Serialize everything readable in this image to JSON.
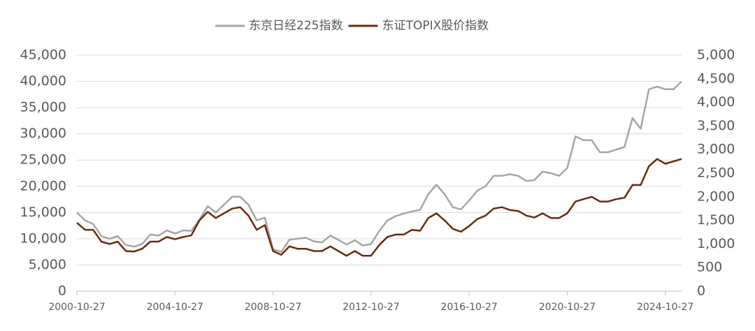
{
  "chart_data": {
    "type": "line",
    "x": [
      "2000-10-27",
      "2001-02-27",
      "2001-06-27",
      "2001-10-27",
      "2002-02-27",
      "2002-06-27",
      "2002-10-27",
      "2003-02-27",
      "2003-06-27",
      "2003-10-27",
      "2004-02-27",
      "2004-06-27",
      "2004-10-27",
      "2005-02-27",
      "2005-06-27",
      "2005-10-27",
      "2006-02-27",
      "2006-06-27",
      "2006-10-27",
      "2007-02-27",
      "2007-06-27",
      "2007-10-27",
      "2008-02-27",
      "2008-06-27",
      "2008-10-27",
      "2009-02-27",
      "2009-06-27",
      "2009-10-27",
      "2010-02-27",
      "2010-06-27",
      "2010-10-27",
      "2011-02-27",
      "2011-06-27",
      "2011-10-27",
      "2012-02-27",
      "2012-06-27",
      "2012-10-27",
      "2013-02-27",
      "2013-06-27",
      "2013-10-27",
      "2014-02-27",
      "2014-06-27",
      "2014-10-27",
      "2015-02-27",
      "2015-06-27",
      "2015-10-27",
      "2016-02-27",
      "2016-06-27",
      "2016-10-27",
      "2017-02-27",
      "2017-06-27",
      "2017-10-27",
      "2018-02-27",
      "2018-06-27",
      "2018-10-27",
      "2019-02-27",
      "2019-06-27",
      "2019-10-27",
      "2020-02-27",
      "2020-06-27",
      "2020-10-27",
      "2021-02-27",
      "2021-06-27",
      "2021-10-27",
      "2022-02-27",
      "2022-06-27",
      "2022-10-27",
      "2023-02-27",
      "2023-06-27",
      "2023-10-27",
      "2024-02-27",
      "2024-06-27",
      "2024-10-27",
      "2025-02-27",
      "2025-06-27"
    ],
    "series": [
      {
        "name": "东京日经225指数",
        "color": "#a6a6a6",
        "axis": "y",
        "values": [
          15000,
          13500,
          12800,
          10500,
          10000,
          10500,
          8800,
          8500,
          9000,
          10800,
          10600,
          11600,
          11000,
          11600,
          11500,
          13600,
          16200,
          15000,
          16500,
          18000,
          18000,
          16500,
          13500,
          14000,
          8000,
          7500,
          9800,
          10000,
          10200,
          9500,
          9300,
          10600,
          9800,
          8900,
          9700,
          8700,
          9000,
          11500,
          13500,
          14300,
          14800,
          15200,
          15500,
          18500,
          20300,
          18500,
          16000,
          15600,
          17300,
          19200,
          20000,
          22000,
          22000,
          22300,
          22000,
          21000,
          21200,
          22800,
          22500,
          22000,
          23500,
          29500,
          28800,
          28800,
          26500,
          26500,
          27000,
          27500,
          33000,
          31000,
          38500,
          39000,
          38500,
          38500,
          40000
        ]
      },
      {
        "name": "东证TOPIX股价指数",
        "color": "#6b2a0e",
        "axis": "y2",
        "values": [
          1450,
          1300,
          1300,
          1050,
          1000,
          1050,
          850,
          840,
          900,
          1050,
          1050,
          1150,
          1100,
          1150,
          1180,
          1500,
          1680,
          1550,
          1650,
          1750,
          1780,
          1600,
          1300,
          1400,
          850,
          770,
          950,
          900,
          900,
          850,
          850,
          950,
          850,
          750,
          850,
          750,
          750,
          980,
          1150,
          1200,
          1200,
          1300,
          1280,
          1550,
          1650,
          1500,
          1320,
          1260,
          1380,
          1530,
          1600,
          1750,
          1780,
          1720,
          1700,
          1600,
          1560,
          1650,
          1550,
          1550,
          1650,
          1900,
          1950,
          2000,
          1900,
          1900,
          1950,
          1980,
          2250,
          2250,
          2650,
          2800,
          2700,
          2750,
          2800
        ]
      }
    ],
    "xlim": [
      "2000-10-27",
      "2025-06-27"
    ],
    "xticks": [
      "2000-10-27",
      "2004-10-27",
      "2008-10-27",
      "2012-10-27",
      "2016-10-27",
      "2020-10-27",
      "2024-10-27"
    ],
    "ylim": [
      0,
      45000
    ],
    "yticks": [
      0,
      {
        "value": 5000,
        "label": "5,000"
      },
      {
        "value": 10000,
        "label": "10,000"
      },
      {
        "value": 15000,
        "label": "15,000"
      },
      {
        "value": 20000,
        "label": "20,000"
      },
      {
        "value": 25000,
        "label": "25,000"
      },
      {
        "value": 30000,
        "label": "30,000"
      },
      {
        "value": 35000,
        "label": "35,000"
      },
      {
        "value": 40000,
        "label": "40,000"
      },
      {
        "value": 45000,
        "label": "45,000"
      }
    ],
    "y2lim": [
      0,
      5000
    ],
    "y2ticks": [
      0,
      500,
      {
        "value": 1000,
        "label": "1,000"
      },
      {
        "value": 1500,
        "label": "1,500"
      },
      {
        "value": 2000,
        "label": "2,000"
      },
      {
        "value": 2500,
        "label": "2,500"
      },
      {
        "value": 3000,
        "label": "3,000"
      },
      {
        "value": 3500,
        "label": "3,500"
      },
      {
        "value": 4000,
        "label": "4,000"
      },
      {
        "value": 4500,
        "label": "4,500"
      },
      {
        "value": 5000,
        "label": "5,000"
      }
    ],
    "grid": true,
    "legend": "top"
  }
}
